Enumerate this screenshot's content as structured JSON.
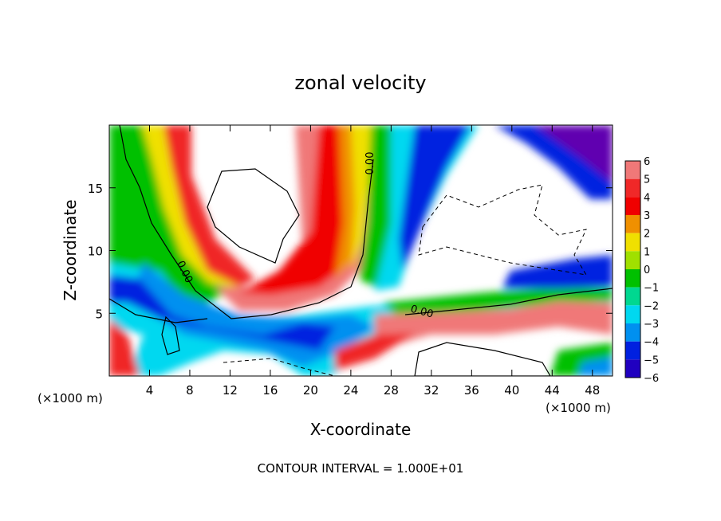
{
  "chart_data": {
    "type": "heatmap",
    "title": "zonal velocity",
    "xlabel": "X-coordinate",
    "ylabel": "Z-coordinate",
    "x_unit_left": "(×1000 m)",
    "x_unit_right": "(×1000 m)",
    "xlim": [
      0,
      50
    ],
    "ylim": [
      0,
      20
    ],
    "x_ticks": [
      4,
      8,
      12,
      16,
      20,
      24,
      28,
      32,
      36,
      40,
      44,
      48
    ],
    "y_ticks": [
      5,
      10,
      15
    ],
    "colorbar": {
      "levels": [
        6,
        5,
        4,
        3,
        2,
        1,
        0,
        -1,
        -2,
        -3,
        -4,
        -5,
        -6
      ],
      "colors": [
        "#f07878",
        "#f02828",
        "#f00000",
        "#f09000",
        "#f0e000",
        "#a0e000",
        "#00c000",
        "#00d890",
        "#00d8f0",
        "#0090f0",
        "#0020e0",
        "#2000c0",
        "#6000b0"
      ]
    },
    "contour_labels": [
      "0.00",
      "0.00",
      "0.00"
    ],
    "footnote": "CONTOUR INTERVAL = 1.000E+01"
  }
}
